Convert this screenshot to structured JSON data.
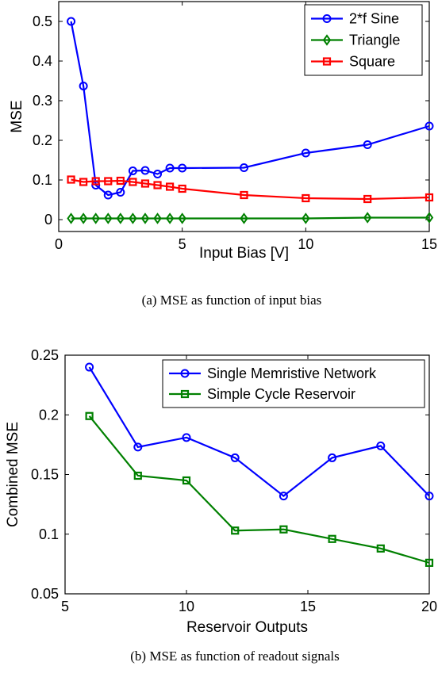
{
  "chart_data": [
    {
      "type": "line",
      "caption": "(a) MSE as function of input bias",
      "xlabel": "Input Bias [V]",
      "ylabel": "MSE",
      "xlim": [
        0,
        15
      ],
      "ylim": [
        -0.03,
        0.55
      ],
      "xticks": [
        0,
        5,
        10,
        15
      ],
      "yticks": [
        0,
        0.1,
        0.2,
        0.3,
        0.4,
        0.5
      ],
      "xtick_labels": [
        "0",
        "5",
        "10",
        "15"
      ],
      "ytick_labels": [
        "0",
        "0.1",
        "0.2",
        "0.3",
        "0.4",
        "0.5"
      ],
      "grid": false,
      "legend_position": "top-right",
      "series": [
        {
          "name": "2*f Sine",
          "color": "#0000ff",
          "marker": "circle",
          "x": [
            0.5,
            1,
            1.5,
            2,
            2.5,
            3,
            3.5,
            4,
            4.5,
            5,
            7.5,
            10,
            12.5,
            15
          ],
          "y": [
            0.5,
            0.337,
            0.087,
            0.062,
            0.069,
            0.123,
            0.124,
            0.115,
            0.13,
            0.13,
            0.131,
            0.168,
            0.189,
            0.236
          ]
        },
        {
          "name": "Triangle",
          "color": "#008000",
          "marker": "diamond",
          "x": [
            0.5,
            1,
            1.5,
            2,
            2.5,
            3,
            3.5,
            4,
            4.5,
            5,
            7.5,
            10,
            12.5,
            15
          ],
          "y": [
            0.003,
            0.003,
            0.003,
            0.003,
            0.003,
            0.003,
            0.003,
            0.003,
            0.003,
            0.003,
            0.003,
            0.003,
            0.005,
            0.005
          ]
        },
        {
          "name": "Square",
          "color": "#ff0000",
          "marker": "square",
          "x": [
            0.5,
            1,
            1.5,
            2,
            2.5,
            3,
            3.5,
            4,
            4.5,
            5,
            7.5,
            10,
            12.5,
            15
          ],
          "y": [
            0.101,
            0.095,
            0.097,
            0.097,
            0.098,
            0.095,
            0.091,
            0.087,
            0.083,
            0.078,
            0.062,
            0.054,
            0.052,
            0.056
          ]
        }
      ]
    },
    {
      "type": "line",
      "caption": "(b) MSE as function of readout signals",
      "xlabel": "Reservoir Outputs",
      "ylabel": "Combined MSE",
      "xlim": [
        5,
        20
      ],
      "ylim": [
        0.05,
        0.25
      ],
      "xticks": [
        5,
        10,
        15,
        20
      ],
      "yticks": [
        0.05,
        0.1,
        0.15,
        0.2,
        0.25
      ],
      "xtick_labels": [
        "5",
        "10",
        "15",
        "20"
      ],
      "ytick_labels": [
        "0.05",
        "0.1",
        "0.15",
        "0.2",
        "0.25"
      ],
      "grid": false,
      "legend_position": "top-right",
      "series": [
        {
          "name": "Single Memristive Network",
          "color": "#0000ff",
          "marker": "circle",
          "x": [
            6,
            8,
            10,
            12,
            14,
            16,
            18,
            20
          ],
          "y": [
            0.24,
            0.173,
            0.181,
            0.164,
            0.132,
            0.164,
            0.174,
            0.132
          ]
        },
        {
          "name": "Simple Cycle Reservoir",
          "color": "#008000",
          "marker": "square",
          "x": [
            6,
            8,
            10,
            12,
            14,
            16,
            18,
            20
          ],
          "y": [
            0.199,
            0.149,
            0.145,
            0.103,
            0.104,
            0.096,
            0.088,
            0.076
          ]
        }
      ]
    }
  ]
}
